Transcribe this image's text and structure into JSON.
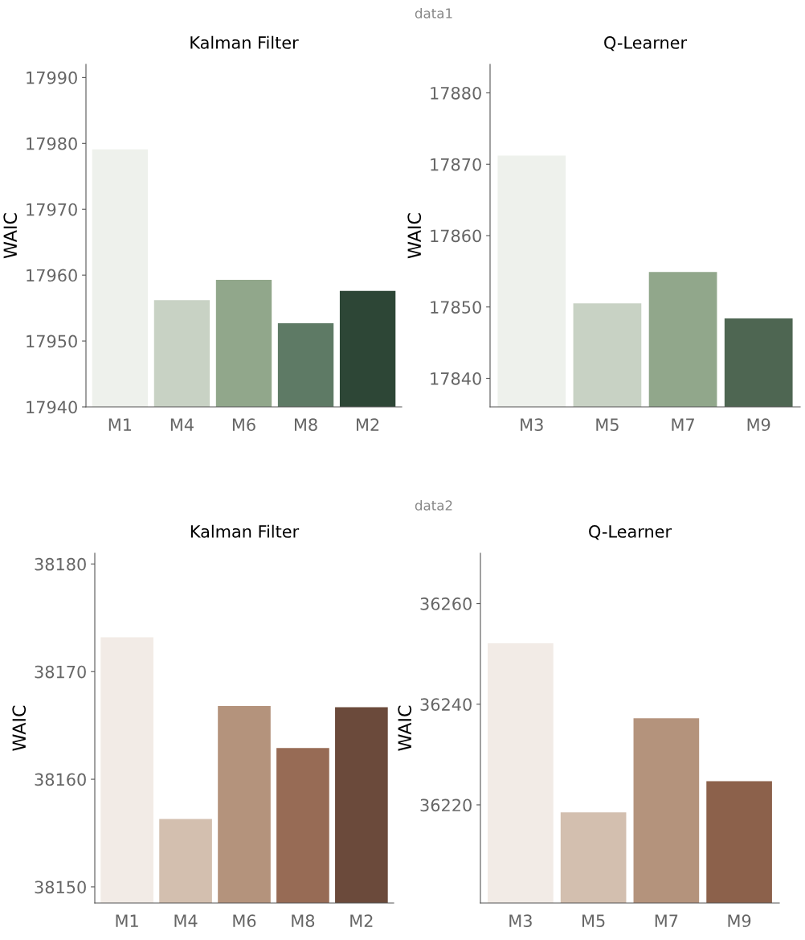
{
  "chart_data": [
    {
      "type": "bar",
      "title": "Kalman Filter",
      "ylabel": "WAIC",
      "annotations": [
        "data1"
      ],
      "categories": [
        "M1",
        "M4",
        "M6",
        "M8",
        "M2"
      ],
      "values": [
        17979.1,
        17956.2,
        17959.3,
        17952.7,
        17957.6
      ],
      "colors": [
        "#eef1ec",
        "#c8d2c4",
        "#91a78b",
        "#5e7a65",
        "#2d4636"
      ],
      "ylim": [
        17940,
        17992
      ],
      "yticks": [
        17940,
        17950,
        17960,
        17970,
        17980,
        17990
      ],
      "grid": false,
      "legend": false
    },
    {
      "type": "bar",
      "title": "Q-Learner",
      "ylabel": "WAIC",
      "categories": [
        "M3",
        "M5",
        "M7",
        "M9"
      ],
      "values": [
        17871.2,
        17850.5,
        17854.9,
        17848.4
      ],
      "colors": [
        "#eef1ec",
        "#c8d2c4",
        "#91a78b",
        "#4e6652"
      ],
      "ylim": [
        17836,
        17884
      ],
      "yticks": [
        17840,
        17850,
        17860,
        17870,
        17880
      ],
      "grid": false,
      "legend": false
    },
    {
      "type": "bar",
      "title": "Kalman Filter",
      "ylabel": "WAIC",
      "annotations": [
        "data2"
      ],
      "categories": [
        "M1",
        "M4",
        "M6",
        "M8",
        "M2"
      ],
      "values": [
        38173.2,
        38156.3,
        38166.8,
        38162.9,
        38166.7
      ],
      "colors": [
        "#f2ebe6",
        "#d3bfaf",
        "#b4937c",
        "#976b55",
        "#6b4a3b"
      ],
      "ylim": [
        38148.5,
        38181
      ],
      "yticks": [
        38150,
        38160,
        38170,
        38180
      ],
      "grid": false,
      "legend": false
    },
    {
      "type": "bar",
      "title": "Q-Learner",
      "ylabel": "WAIC",
      "categories": [
        "M3",
        "M5",
        "M7",
        "M9"
      ],
      "values": [
        36252.1,
        36218.5,
        36237.2,
        36224.7
      ],
      "colors": [
        "#f2ebe6",
        "#d3bfaf",
        "#b4937c",
        "#8c614b"
      ],
      "ylim": [
        36200.5,
        36270
      ],
      "yticks": [
        36220,
        36240,
        36260
      ],
      "grid": false,
      "legend": false
    }
  ]
}
